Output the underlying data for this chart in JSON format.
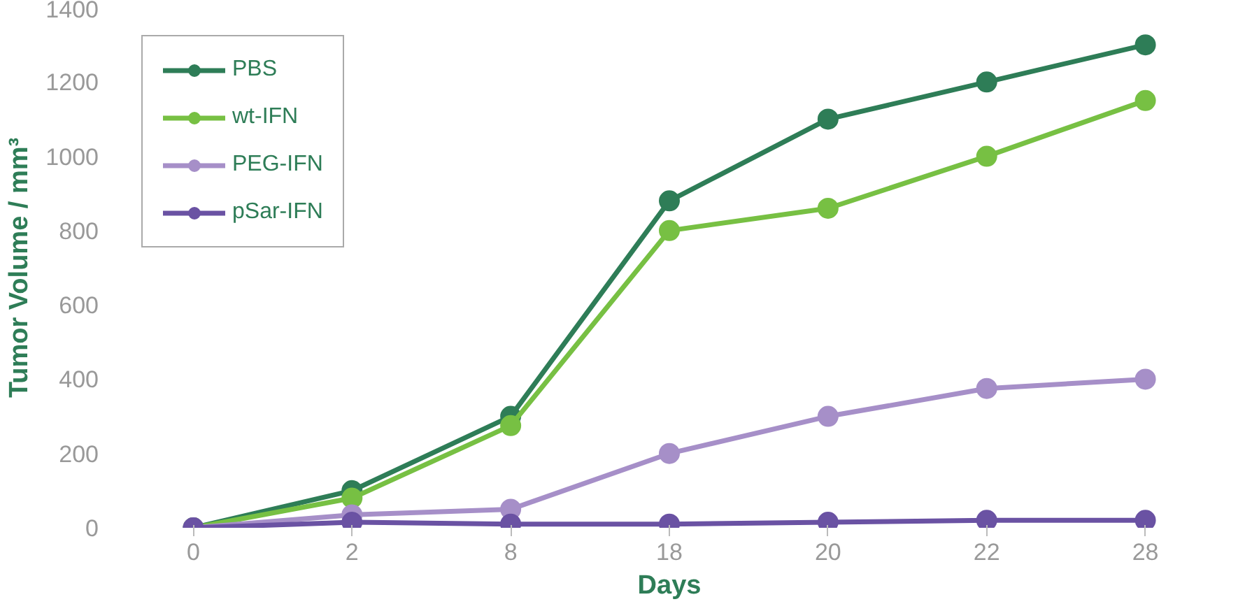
{
  "chart_data": {
    "type": "line",
    "xlabel": "Days",
    "ylabel": "Tumor Volume / mm³",
    "categories": [
      "0",
      "2",
      "8",
      "18",
      "20",
      "22",
      "28"
    ],
    "ylim": [
      0,
      1400
    ],
    "yticks": [
      0,
      200,
      400,
      600,
      800,
      1000,
      1200,
      1400
    ],
    "grid": false,
    "legend": "top left",
    "marker": "circle",
    "line_style": "solid",
    "series": [
      {
        "name": "PBS",
        "color": "#2e7d57",
        "values": [
          0,
          100,
          300,
          880,
          1100,
          1200,
          1300
        ]
      },
      {
        "name": "wt-IFN",
        "color": "#77c043",
        "values": [
          0,
          80,
          275,
          800,
          860,
          1000,
          1150
        ]
      },
      {
        "name": "PEG-IFN",
        "color": "#a68fc8",
        "values": [
          0,
          35,
          50,
          200,
          300,
          375,
          400
        ]
      },
      {
        "name": "pSar-IFN",
        "color": "#6a52a3",
        "values": [
          0,
          15,
          10,
          10,
          15,
          20,
          20
        ]
      }
    ]
  }
}
